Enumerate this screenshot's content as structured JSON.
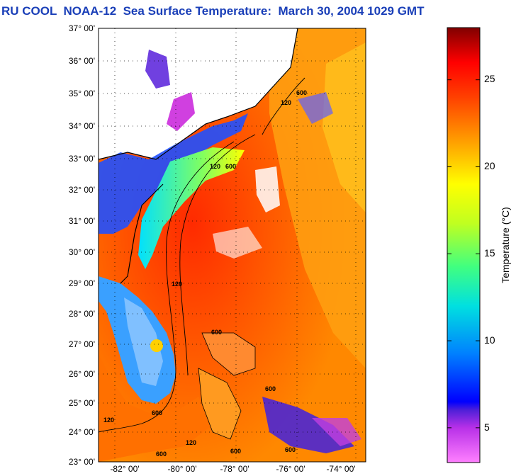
{
  "title": "RU COOL  NOAA-12  Sea Surface Temperature:  March 30, 2004 1029 GMT",
  "map": {
    "lat_labels": [
      "37° 00'",
      "36° 00'",
      "35° 00'",
      "34° 00'",
      "33° 00'",
      "32° 00'",
      "31° 00'",
      "30° 00'",
      "29° 00'",
      "28° 00'",
      "27° 00'",
      "26° 00'",
      "25° 00'",
      "24° 00'",
      "23° 00'"
    ],
    "lon_labels": [
      "-82° 00'",
      "-80° 00'",
      "-78° 00'",
      "-76° 00'",
      "-74° 00'"
    ],
    "contour_labels": [
      "120",
      "600",
      "600",
      "120",
      "600",
      "120",
      "600",
      "600",
      "120",
      "600",
      "120",
      "600",
      "600"
    ]
  },
  "colorbar": {
    "title": "Temperature (°C)",
    "tick_labels": [
      "25",
      "20",
      "15",
      "10",
      "5"
    ],
    "tick_values": [
      25,
      20,
      15,
      10,
      5
    ],
    "range": [
      3,
      28
    ]
  },
  "colors": {
    "title": "#1a3fb8",
    "land": "#ffffff",
    "cloud": "#ffffff"
  }
}
